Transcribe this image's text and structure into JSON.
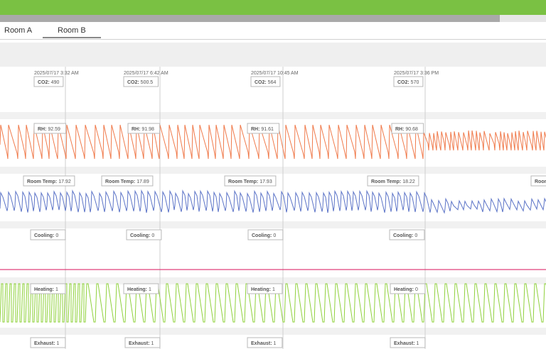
{
  "tabs": [
    {
      "label": "Room A",
      "active": false
    },
    {
      "label": "Room B",
      "active": true
    }
  ],
  "colors": {
    "topbar": "#7ac143",
    "co2": "#3bab7f",
    "rh": "#f07a4b",
    "temp": "#5b73c7",
    "cooling": "#e0407a",
    "heating": "#8fd13b"
  },
  "chart_data": {
    "type": "line",
    "timestamps": [
      "2025/07/17 3:32 AM",
      "2025/07/17 6:42 AM",
      "2025/07/17 10:45 AM",
      "2025/07/17 3:36 PM"
    ],
    "series": [
      {
        "name": "CO2",
        "values": [
          490,
          500.5,
          564,
          570
        ]
      },
      {
        "name": "RH",
        "values": [
          92.59,
          91.98,
          91.61,
          90.68
        ]
      },
      {
        "name": "Room Temp",
        "values": [
          17.92,
          17.89,
          17.93,
          18.22
        ]
      },
      {
        "name": "Cooling",
        "values": [
          0,
          0,
          0,
          0
        ]
      },
      {
        "name": "Heating",
        "values": [
          1,
          1,
          1,
          0
        ]
      },
      {
        "name": "Exhaust",
        "values": [
          1,
          1,
          1,
          1
        ]
      }
    ],
    "grid": false
  }
}
